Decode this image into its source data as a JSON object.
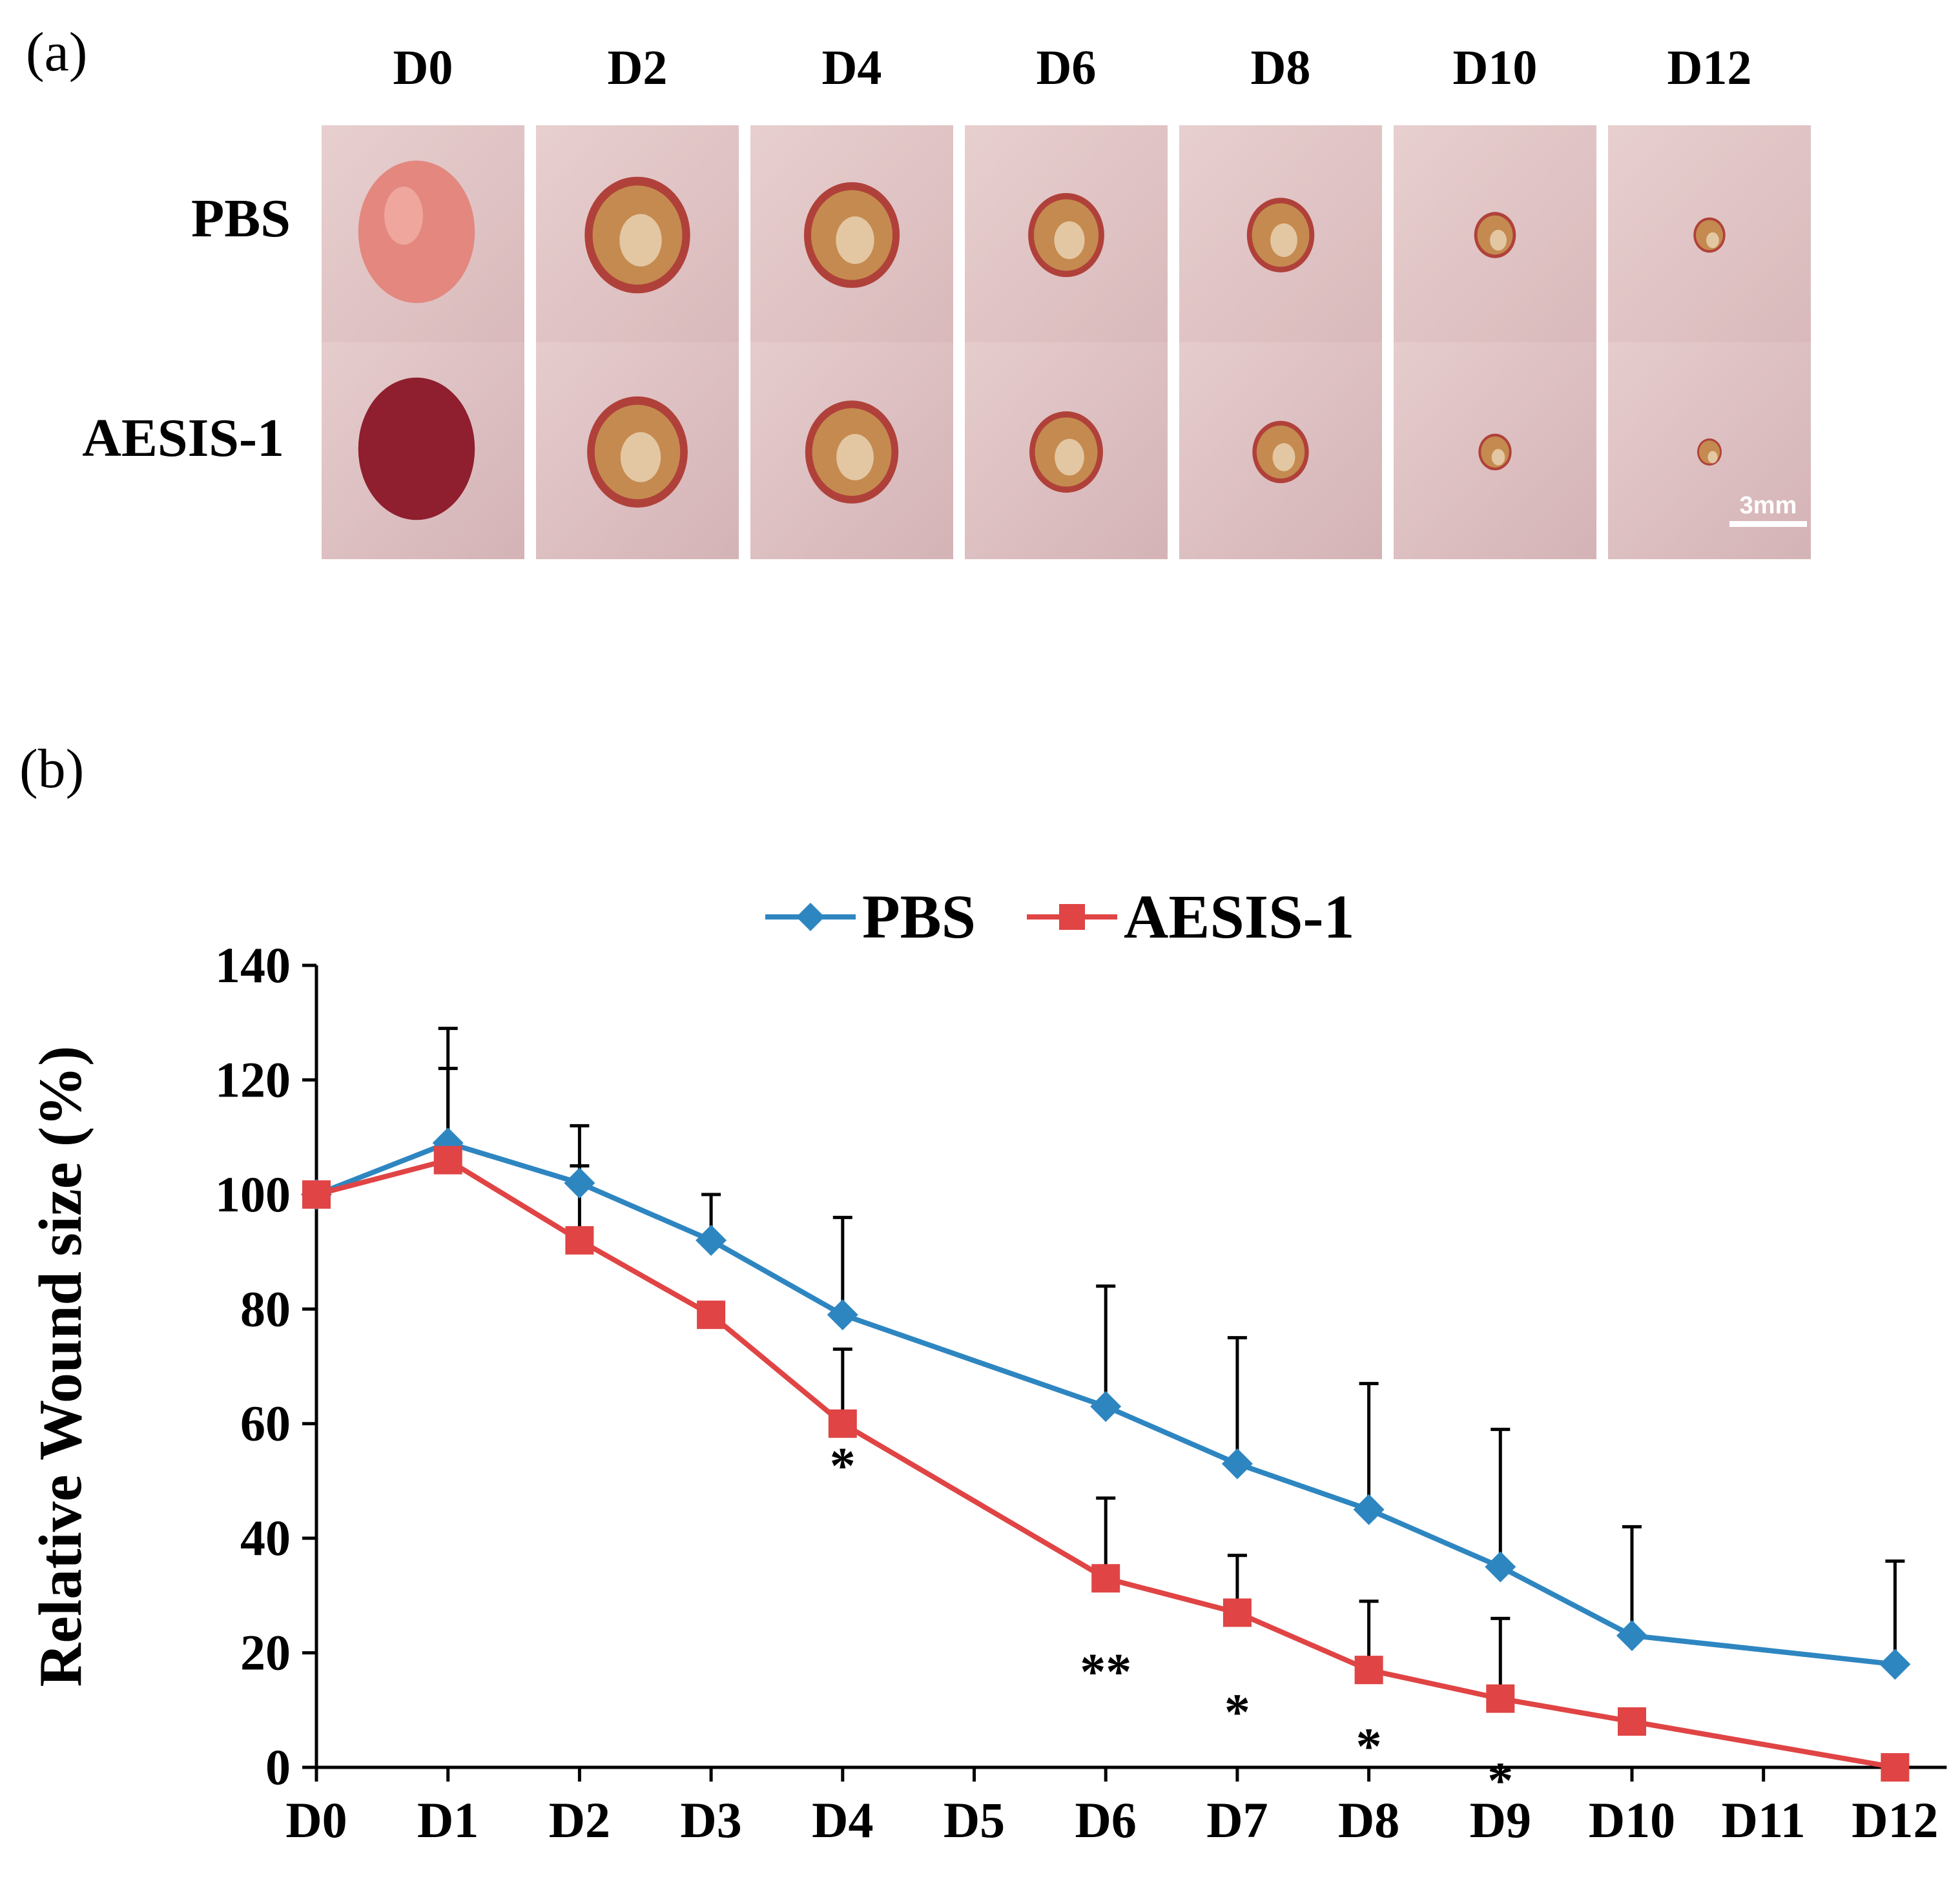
{
  "panel_a": {
    "label": "(a)",
    "days": [
      "D0",
      "D2",
      "D4",
      "D6",
      "D8",
      "D10",
      "D12"
    ],
    "rows": [
      "PBS",
      "AESIS-1"
    ],
    "scale_bar": "3mm",
    "wound_scale": {
      "PBS": [
        1.0,
        0.86,
        0.78,
        0.62,
        0.55,
        0.34,
        0.26
      ],
      "AESIS-1": [
        1.0,
        0.82,
        0.76,
        0.6,
        0.46,
        0.27,
        0.2
      ]
    }
  },
  "panel_b": {
    "label": "(b)"
  },
  "chart_data": {
    "type": "line",
    "ylabel": "Relative Wound size (%)",
    "xlabel": "",
    "ylim": [
      0,
      140
    ],
    "yticks": [
      "0",
      "20",
      "40",
      "60",
      "80",
      "100",
      "120",
      "140"
    ],
    "categories": [
      "D0",
      "D1",
      "D2",
      "D3",
      "D4",
      "D5",
      "D6",
      "D7",
      "D8",
      "D9",
      "D10",
      "D11",
      "D12"
    ],
    "legend_position": "top-center",
    "series": [
      {
        "name": "PBS",
        "color": "#2E86C1",
        "marker": "diamond",
        "x": [
          0,
          1,
          2,
          3,
          4,
          6,
          7,
          8,
          9,
          10,
          12
        ],
        "values": [
          100,
          109,
          102,
          92,
          79,
          63,
          53,
          45,
          35,
          23,
          18
        ],
        "error": [
          0,
          20,
          10,
          8,
          17,
          21,
          22,
          22,
          24,
          19,
          18
        ]
      },
      {
        "name": "AESIS-1",
        "color": "#E04444",
        "marker": "square",
        "x": [
          0,
          1,
          2,
          3,
          4,
          6,
          7,
          8,
          9,
          10,
          12
        ],
        "values": [
          100,
          106,
          92,
          79,
          60,
          33,
          27,
          17,
          12,
          8,
          0
        ],
        "error": [
          0,
          16,
          13,
          0,
          13,
          14,
          10,
          12,
          14,
          0,
          0
        ]
      }
    ],
    "annotations": [
      {
        "x": 4,
        "y": 53,
        "text": "*"
      },
      {
        "x": 6,
        "y": 17,
        "text": "**"
      },
      {
        "x": 7,
        "y": 10,
        "text": "*"
      },
      {
        "x": 8,
        "y": 4,
        "text": "*"
      },
      {
        "x": 9,
        "y": -2,
        "text": "*"
      }
    ]
  }
}
